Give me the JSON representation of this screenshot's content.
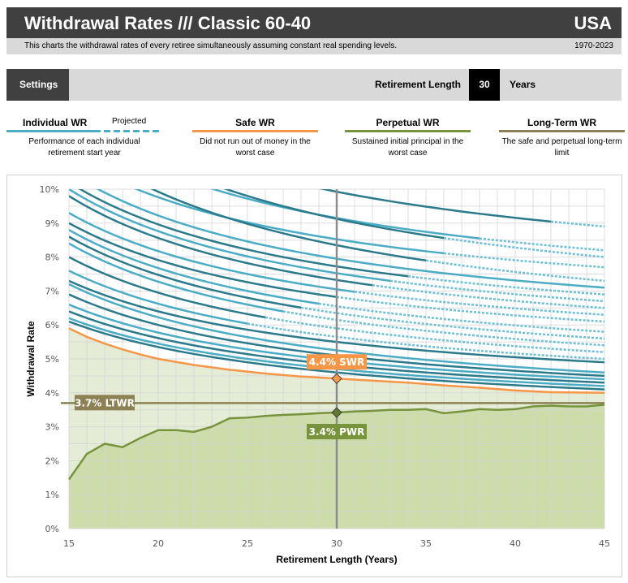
{
  "header": {
    "title": "Withdrawal Rates /// Classic 60-40",
    "country": "USA",
    "description": "This charts the withdrawal rates of every retiree simultaneously assuming constant real spending levels.",
    "years": "1970-2023"
  },
  "settings": {
    "label": "Settings",
    "length_label": "Retirement Length",
    "length_value": "30",
    "length_unit": "Years"
  },
  "legend": [
    {
      "title": "Individual WR",
      "extra": "Projected",
      "desc": "Performance of each individual retirement start year",
      "color": "#4bacc6"
    },
    {
      "title": "Safe WR",
      "desc": "Did not run out of money in the worst case",
      "color": "#f79646"
    },
    {
      "title": "Perpetual WR",
      "desc": "Sustained initial principal in the worst case",
      "color": "#77933c"
    },
    {
      "title": "Long-Term WR",
      "desc": "The safe and perpetual long-term limit",
      "color": "#8b8155"
    }
  ],
  "chart_data": {
    "type": "line",
    "xlabel": "Retirement Length (Years)",
    "ylabel": "Withdrawal Rate",
    "xlim": [
      15,
      45
    ],
    "ylim": [
      0,
      10
    ],
    "xticks": [
      "15",
      "20",
      "25",
      "30",
      "35",
      "40",
      "45"
    ],
    "yticks": [
      "0%",
      "1%",
      "2%",
      "3%",
      "4%",
      "5%",
      "6%",
      "7%",
      "8%",
      "9%",
      "10%"
    ],
    "selected_length": 30,
    "swr": {
      "label": "4.4% SWR",
      "x": [
        15,
        16,
        17,
        18,
        19,
        20,
        22,
        24,
        26,
        28,
        30,
        32,
        34,
        36,
        38,
        40,
        42,
        45
      ],
      "y": [
        5.9,
        5.65,
        5.45,
        5.28,
        5.13,
        5.0,
        4.82,
        4.68,
        4.57,
        4.48,
        4.42,
        4.36,
        4.3,
        4.22,
        4.15,
        4.07,
        4.02,
        4.0
      ]
    },
    "pwr": {
      "label": "3.4% PWR",
      "x": [
        15,
        16,
        17,
        18,
        19,
        20,
        21,
        22,
        23,
        24,
        25,
        26,
        27,
        28,
        29,
        30,
        31,
        32,
        33,
        34,
        35,
        36,
        37,
        38,
        39,
        40,
        41,
        42,
        43,
        44,
        45
      ],
      "y": [
        1.45,
        2.2,
        2.5,
        2.4,
        2.67,
        2.9,
        2.9,
        2.85,
        3.0,
        3.25,
        3.27,
        3.32,
        3.35,
        3.37,
        3.4,
        3.42,
        3.45,
        3.47,
        3.5,
        3.5,
        3.52,
        3.4,
        3.45,
        3.52,
        3.5,
        3.52,
        3.6,
        3.62,
        3.6,
        3.6,
        3.65
      ]
    },
    "ltwr": {
      "label": "3.7% LTWR",
      "value": 3.7
    },
    "individual_series_note": "each series: [WR at 15y, WR at 45y, projected from length]",
    "individual": [
      [
        13,
        8.9,
        42
      ],
      [
        12,
        8.2,
        38
      ],
      [
        12.5,
        8.0,
        36
      ],
      [
        11,
        7.7,
        36
      ],
      [
        11.5,
        7.3,
        35
      ],
      [
        10.5,
        7.1,
        null
      ],
      [
        10.2,
        6.9,
        34
      ],
      [
        10,
        6.7,
        33
      ],
      [
        9.8,
        6.5,
        32
      ],
      [
        9.3,
        6.3,
        31
      ],
      [
        9.0,
        6.1,
        30
      ],
      [
        8.8,
        5.8,
        29
      ],
      [
        8.6,
        5.6,
        28
      ],
      [
        8.4,
        5.4,
        27
      ],
      [
        8.0,
        5.2,
        26
      ],
      [
        7.6,
        5.0,
        25
      ],
      [
        7.3,
        4.9,
        null
      ],
      [
        7.2,
        4.6,
        null
      ],
      [
        6.9,
        4.5,
        null
      ],
      [
        6.6,
        4.4,
        null
      ],
      [
        6.4,
        4.3,
        null
      ],
      [
        6.2,
        4.2,
        null
      ],
      [
        6.1,
        4.1,
        null
      ]
    ]
  }
}
